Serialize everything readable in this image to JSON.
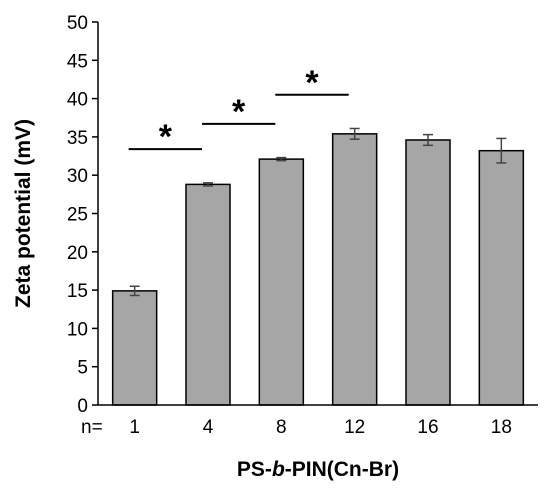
{
  "chart_data": {
    "type": "bar",
    "categories": [
      "1",
      "4",
      "8",
      "12",
      "16",
      "18"
    ],
    "category_prefix": "n=",
    "series": [
      {
        "values": [
          14.9,
          28.8,
          32.1,
          35.4,
          34.6,
          33.2
        ],
        "errors": [
          0.6,
          0.2,
          0.2,
          0.7,
          0.7,
          1.6
        ],
        "color": "#a6a6a6"
      }
    ],
    "ylabel": "Zeta potential (mV)",
    "xlabel_parts": [
      "PS-",
      "b",
      "-PIN(Cn-Br)"
    ],
    "ylim": [
      0,
      50
    ],
    "yticks": [
      0,
      5,
      10,
      15,
      20,
      25,
      30,
      35,
      40,
      45,
      50
    ],
    "grid": false,
    "legend": "none",
    "significance": [
      {
        "from": "1",
        "to": "4",
        "label": "*"
      },
      {
        "from": "4",
        "to": "8",
        "label": "*"
      },
      {
        "from": "8",
        "to": "12",
        "label": "*"
      }
    ]
  }
}
